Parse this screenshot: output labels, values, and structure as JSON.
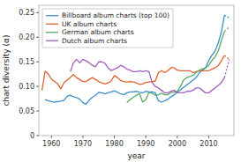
{
  "chart_data": {
    "type": "line",
    "xlabel": "year",
    "ylabel": "chart diversity (α)",
    "xlim": [
      1956,
      2018
    ],
    "ylim": [
      0,
      0.265
    ],
    "xticks": [
      1960,
      1970,
      1980,
      1990,
      2000,
      2010
    ],
    "yticks": [
      0,
      0.05,
      {
        "value": 0.1,
        "label": "0.10"
      },
      0.15,
      {
        "value": 0.2,
        "label": "0.20"
      },
      0.25
    ],
    "grid": false,
    "legend": "upper-left",
    "series": [
      {
        "name": "Billboard album charts (top 100)",
        "color": "#3b8fcf",
        "line_style": "solid",
        "x": [
          1958,
          1959,
          1960,
          1961,
          1962,
          1963,
          1964,
          1965,
          1966,
          1967,
          1968,
          1969,
          1970,
          1971,
          1972,
          1973,
          1974,
          1975,
          1976,
          1977,
          1978,
          1979,
          1980,
          1981,
          1982,
          1983,
          1984,
          1985,
          1986,
          1987,
          1988,
          1989,
          1990,
          1991,
          1992,
          1993,
          1994,
          1995,
          1996,
          1997,
          1998,
          1999,
          2000,
          2001,
          2002,
          2003,
          2004,
          2005,
          2006,
          2007,
          2008,
          2009,
          2010,
          2011,
          2012,
          2013,
          2014,
          2015
        ],
        "values": [
          0.073,
          0.071,
          0.069,
          0.068,
          0.069,
          0.07,
          0.072,
          0.08,
          0.082,
          0.079,
          0.077,
          0.074,
          0.067,
          0.064,
          0.072,
          0.078,
          0.082,
          0.088,
          0.087,
          0.085,
          0.087,
          0.089,
          0.091,
          0.088,
          0.085,
          0.083,
          0.087,
          0.089,
          0.089,
          0.09,
          0.088,
          0.087,
          0.09,
          0.089,
          0.089,
          0.087,
          0.071,
          0.068,
          0.071,
          0.074,
          0.079,
          0.083,
          0.088,
          0.093,
          0.098,
          0.103,
          0.108,
          0.113,
          0.118,
          0.128,
          0.133,
          0.138,
          0.153,
          0.163,
          0.172,
          0.188,
          0.21,
          0.245
        ]
      },
      {
        "color": "#3b8fcf",
        "line_style": "dotted",
        "x": [
          2015,
          2016,
          2016.5
        ],
        "values": [
          0.245,
          0.242,
          0.238
        ]
      },
      {
        "name": "UK album charts",
        "color": "#e06030",
        "line_style": "solid",
        "x": [
          1957,
          1958,
          1959,
          1960,
          1961,
          1962,
          1963,
          1964,
          1965,
          1966,
          1967,
          1968,
          1969,
          1970,
          1971,
          1972,
          1973,
          1974,
          1975,
          1976,
          1977,
          1978,
          1979,
          1980,
          1981,
          1982,
          1983,
          1984,
          1985,
          1986,
          1987,
          1988,
          1989,
          1990,
          1991,
          1992,
          1993,
          1994,
          1995,
          1996,
          1997,
          1998,
          1999,
          2000,
          2001,
          2002,
          2003,
          2004,
          2005,
          2006,
          2007,
          2008,
          2009,
          2010,
          2011,
          2012,
          2013,
          2014,
          2015
        ],
        "values": [
          0.092,
          0.131,
          0.125,
          0.115,
          0.11,
          0.105,
          0.095,
          0.108,
          0.113,
          0.118,
          0.124,
          0.118,
          0.114,
          0.11,
          0.11,
          0.114,
          0.118,
          0.114,
          0.11,
          0.107,
          0.105,
          0.107,
          0.111,
          0.122,
          0.118,
          0.112,
          0.11,
          0.109,
          0.11,
          0.109,
          0.107,
          0.104,
          0.105,
          0.108,
          0.109,
          0.11,
          0.111,
          0.128,
          0.132,
          0.128,
          0.132,
          0.138,
          0.138,
          0.133,
          0.132,
          0.132,
          0.132,
          0.132,
          0.128,
          0.13,
          0.132,
          0.132,
          0.132,
          0.132,
          0.135,
          0.138,
          0.142,
          0.152,
          0.163
        ]
      },
      {
        "color": "#e06030",
        "line_style": "dotted",
        "x": [
          2015,
          2016,
          2016.5
        ],
        "values": [
          0.163,
          0.158,
          0.153
        ]
      },
      {
        "name": "German album charts",
        "color": "#5aaa60",
        "line_style": "solid",
        "x": [
          1984,
          1985,
          1986,
          1987,
          1988,
          1989,
          1990,
          1991,
          1992,
          1993,
          1994,
          1995,
          1996,
          1997,
          1998,
          1999,
          2000,
          2001,
          2002,
          2003,
          2004,
          2005,
          2006,
          2007,
          2008,
          2009,
          2010,
          2011,
          2012,
          2013,
          2014,
          2015
        ],
        "values": [
          0.067,
          0.073,
          0.078,
          0.082,
          0.085,
          0.068,
          0.073,
          0.088,
          0.086,
          0.082,
          0.083,
          0.086,
          0.083,
          0.083,
          0.088,
          0.088,
          0.09,
          0.1,
          0.113,
          0.118,
          0.12,
          0.123,
          0.128,
          0.133,
          0.136,
          0.138,
          0.143,
          0.153,
          0.16,
          0.172,
          0.193,
          0.212
        ]
      },
      {
        "color": "#5aaa60",
        "line_style": "dotted",
        "x": [
          2015,
          2016,
          2016.5
        ],
        "values": [
          0.212,
          0.218,
          0.222
        ]
      },
      {
        "name": "Dutch album charts",
        "color": "#a060c0",
        "line_style": "solid",
        "x": [
          1966,
          1967,
          1968,
          1969,
          1970,
          1971,
          1972,
          1973,
          1974,
          1975,
          1976,
          1977,
          1978,
          1979,
          1980,
          1981,
          1982,
          1983,
          1984,
          1985,
          1986,
          1987,
          1988,
          1989,
          1990,
          1991,
          1992,
          1993,
          1994,
          1995,
          1996,
          1997,
          1998,
          1999,
          2000,
          2001,
          2002,
          2003,
          2004,
          2005,
          2006,
          2007,
          2008,
          2009,
          2010,
          2011,
          2012,
          2013,
          2014,
          2015
        ],
        "values": [
          0.13,
          0.148,
          0.155,
          0.148,
          0.155,
          0.152,
          0.148,
          0.143,
          0.14,
          0.15,
          0.15,
          0.147,
          0.138,
          0.132,
          0.135,
          0.138,
          0.143,
          0.14,
          0.135,
          0.133,
          0.13,
          0.13,
          0.132,
          0.13,
          0.132,
          0.13,
          0.108,
          0.1,
          0.097,
          0.092,
          0.087,
          0.087,
          0.09,
          0.092,
          0.087,
          0.087,
          0.087,
          0.09,
          0.09,
          0.092,
          0.097,
          0.097,
          0.092,
          0.087,
          0.087,
          0.092,
          0.097,
          0.102,
          0.108,
          0.118
        ]
      },
      {
        "color": "#a060c0",
        "line_style": "dotted",
        "x": [
          2015,
          2016,
          2016.5
        ],
        "values": [
          0.118,
          0.143,
          0.155
        ]
      }
    ]
  }
}
